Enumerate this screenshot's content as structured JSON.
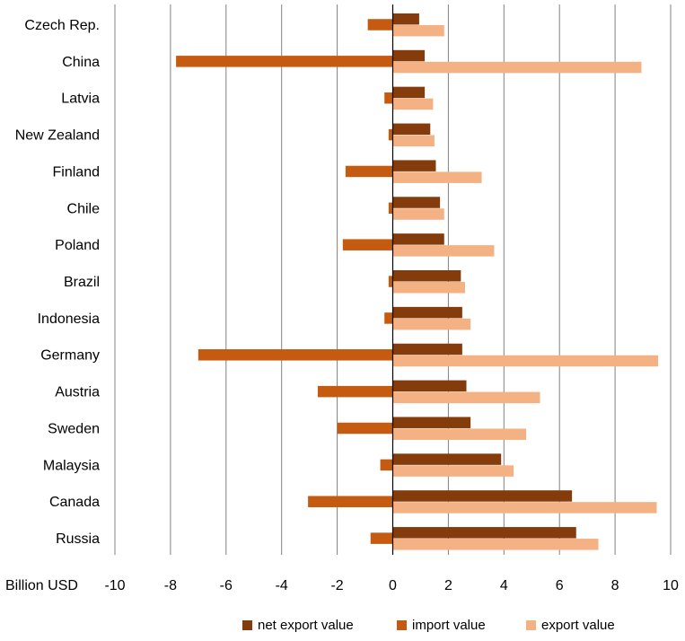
{
  "chart_data": {
    "type": "bar",
    "orientation": "horizontal",
    "categories": [
      "Czech Rep.",
      "China",
      "Latvia",
      "New Zealand",
      "Finland",
      "Chile",
      "Poland",
      "Brazil",
      "Indonesia",
      "Germany",
      "Austria",
      "Sweden",
      "Malaysia",
      "Canada",
      "Russia"
    ],
    "series": [
      {
        "name": "net export value",
        "color": "#843c0c",
        "values": [
          0.95,
          1.15,
          1.15,
          1.35,
          1.55,
          1.7,
          1.85,
          2.45,
          2.5,
          2.5,
          2.65,
          2.8,
          3.9,
          6.45,
          6.6
        ]
      },
      {
        "name": "import value",
        "color": "#c55a11",
        "values": [
          -0.9,
          -7.8,
          -0.3,
          -0.15,
          -1.7,
          -0.15,
          -1.8,
          -0.15,
          -0.3,
          -7.0,
          -2.7,
          -2.0,
          -0.45,
          -3.05,
          -0.8
        ]
      },
      {
        "name": "export value",
        "color": "#f4b183",
        "values": [
          1.85,
          8.95,
          1.45,
          1.5,
          3.2,
          1.85,
          3.65,
          2.6,
          2.8,
          9.55,
          5.3,
          4.8,
          4.35,
          9.5,
          7.4
        ]
      }
    ],
    "xlabel": "Billion USD",
    "xlim": [
      -10,
      10
    ],
    "xticks": [
      -10,
      -8,
      -6,
      -4,
      -2,
      0,
      2,
      4,
      6,
      8,
      10
    ],
    "grid": "vertical",
    "legend_position": "bottom"
  }
}
